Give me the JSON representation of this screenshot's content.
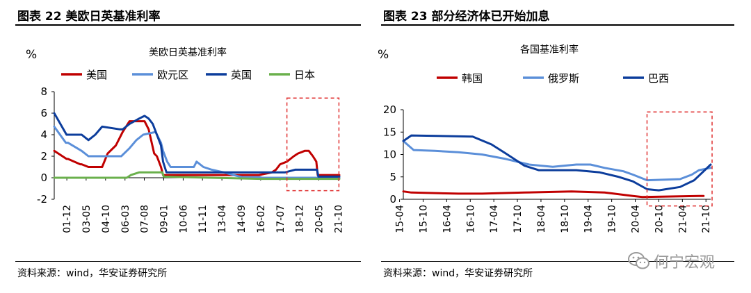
{
  "colors": {
    "red": "#c00000",
    "lightblue": "#5b8fd9",
    "darkblue": "#0c3d9c",
    "green": "#6ab04c",
    "highlight": "#e03030",
    "gray": "#9a9a9a"
  },
  "left_panel": {
    "title": "图表 22  美欧日英基准利率",
    "source": "资料来源：wind，华安证券研究所"
  },
  "right_panel": {
    "title": "图表 23  部分经济体已开始加息",
    "source": "资料来源：wind，华安证券研究所"
  },
  "watermark": {
    "text": "何宁宏观",
    "icon": "wechat-icon"
  },
  "chart_data": [
    {
      "type": "line",
      "title": "美欧日英基准利率",
      "ylabel": "%",
      "ylim": [
        -2,
        8
      ],
      "yticks": [
        -2,
        0,
        2,
        4,
        6,
        8
      ],
      "xlim": [
        2001.0,
        2021.83
      ],
      "xticks": [
        "01-12",
        "03-05",
        "04-10",
        "06-03",
        "07-08",
        "09-01",
        "10-06",
        "11-11",
        "13-04",
        "14-09",
        "16-02",
        "17-07",
        "18-12",
        "20-05",
        "21-10"
      ],
      "xtick_values": [
        2001.92,
        2003.33,
        2004.75,
        2006.17,
        2007.58,
        2009.0,
        2010.42,
        2011.83,
        2013.25,
        2014.67,
        2016.08,
        2017.5,
        2018.92,
        2020.33,
        2021.75
      ],
      "legend_position": "top",
      "highlight_box": {
        "x": [
          2018.0,
          2021.8
        ],
        "y": [
          -1.2,
          7.4
        ]
      },
      "series": [
        {
          "name": "美国",
          "color": "#c00000",
          "x": [
            2001.0,
            2001.9,
            2002.0,
            2002.9,
            2003.0,
            2003.5,
            2004.5,
            2004.9,
            2005.5,
            2006.0,
            2006.5,
            2007.6,
            2007.9,
            2008.3,
            2008.5,
            2008.8,
            2008.95,
            2015.95,
            2016.9,
            2017.2,
            2017.5,
            2018.0,
            2018.5,
            2018.8,
            2019.3,
            2019.6,
            2019.9,
            2020.15,
            2020.25,
            2021.83
          ],
          "y": [
            2.5,
            1.75,
            1.75,
            1.25,
            1.25,
            1.0,
            1.0,
            2.25,
            3.0,
            4.25,
            5.25,
            5.25,
            4.5,
            2.25,
            2.0,
            1.0,
            0.25,
            0.25,
            0.5,
            0.75,
            1.25,
            1.5,
            2.0,
            2.25,
            2.5,
            2.5,
            2.0,
            1.5,
            0.25,
            0.25
          ]
        },
        {
          "name": "欧元区",
          "color": "#5b8fd9",
          "x": [
            2001.0,
            2001.85,
            2002.0,
            2003.0,
            2003.5,
            2005.9,
            2006.5,
            2007.0,
            2007.5,
            2008.4,
            2008.8,
            2008.95,
            2009.25,
            2009.5,
            2011.2,
            2011.4,
            2011.9,
            2012.5,
            2013.4,
            2014.4,
            2014.8,
            2016.0,
            2016.2,
            2021.83
          ],
          "y": [
            4.75,
            3.25,
            3.25,
            2.5,
            2.0,
            2.0,
            2.75,
            3.5,
            4.0,
            4.25,
            3.25,
            2.5,
            1.5,
            1.0,
            1.0,
            1.5,
            1.0,
            0.75,
            0.5,
            0.15,
            0.05,
            0.05,
            0.0,
            0.0
          ]
        },
        {
          "name": "英国",
          "color": "#0c3d9c",
          "x": [
            2001.0,
            2001.9,
            2002.2,
            2003.0,
            2003.5,
            2004.0,
            2004.5,
            2005.8,
            2006.0,
            2006.5,
            2007.2,
            2007.6,
            2007.9,
            2008.2,
            2008.8,
            2008.95,
            2009.2,
            2017.85,
            2018.6,
            2020.2,
            2020.3,
            2021.83
          ],
          "y": [
            6.0,
            4.0,
            4.0,
            4.0,
            3.5,
            4.0,
            4.75,
            4.5,
            4.5,
            5.0,
            5.5,
            5.75,
            5.5,
            5.0,
            3.0,
            1.5,
            0.5,
            0.5,
            0.75,
            0.75,
            0.1,
            0.1
          ]
        },
        {
          "name": "日本",
          "color": "#6ab04c",
          "x": [
            2001.0,
            2006.3,
            2006.6,
            2007.2,
            2008.9,
            2009.0,
            2016.1,
            2021.83
          ],
          "y": [
            0.0,
            0.0,
            0.25,
            0.5,
            0.5,
            0.1,
            -0.1,
            -0.1
          ]
        }
      ]
    },
    {
      "type": "line",
      "title": "各国基准利率",
      "ylabel": "%",
      "ylim": [
        0,
        20
      ],
      "yticks": [
        0,
        5,
        10,
        15,
        20
      ],
      "xlim": [
        2015.33,
        2021.85
      ],
      "xticks": [
        "15-04",
        "15-10",
        "16-04",
        "16-10",
        "17-04",
        "17-10",
        "18-04",
        "18-10",
        "19-04",
        "19-10",
        "20-04",
        "20-10",
        "21-04",
        "21-10"
      ],
      "xtick_values": [
        2015.25,
        2015.75,
        2016.25,
        2016.75,
        2017.25,
        2017.75,
        2018.25,
        2018.75,
        2019.25,
        2019.75,
        2020.25,
        2020.75,
        2021.25,
        2021.75
      ],
      "legend_position": "top",
      "highlight_box": {
        "x": [
          2020.5,
          2021.88
        ],
        "y": [
          -1.5,
          19.5
        ]
      },
      "series": [
        {
          "name": "韩国",
          "color": "#c00000",
          "x": [
            2015.33,
            2015.5,
            2016.5,
            2017.0,
            2017.9,
            2018.9,
            2019.6,
            2019.8,
            2020.2,
            2020.4,
            2021.6,
            2021.7
          ],
          "y": [
            1.75,
            1.5,
            1.25,
            1.25,
            1.5,
            1.75,
            1.5,
            1.25,
            0.75,
            0.5,
            0.75,
            0.75
          ]
        },
        {
          "name": "俄罗斯",
          "color": "#5b8fd9",
          "x": [
            2015.33,
            2015.55,
            2016.0,
            2016.5,
            2017.0,
            2017.5,
            2018.0,
            2018.5,
            2019.0,
            2019.3,
            2019.6,
            2020.0,
            2020.2,
            2020.5,
            2021.2,
            2021.45,
            2021.6,
            2021.85
          ],
          "y": [
            13.0,
            11.0,
            10.8,
            10.5,
            10.0,
            9.0,
            7.75,
            7.25,
            7.75,
            7.75,
            7.0,
            6.25,
            5.5,
            4.25,
            4.5,
            5.5,
            6.5,
            7.0
          ]
        },
        {
          "name": "巴西",
          "color": "#0c3d9c",
          "x": [
            2015.33,
            2015.5,
            2016.8,
            2017.2,
            2017.5,
            2017.9,
            2018.2,
            2019.0,
            2019.5,
            2019.9,
            2020.2,
            2020.5,
            2020.75,
            2021.2,
            2021.5,
            2021.85
          ],
          "y": [
            13.0,
            14.25,
            14.0,
            12.25,
            10.25,
            7.5,
            6.5,
            6.5,
            6.0,
            5.0,
            4.0,
            2.25,
            2.0,
            2.75,
            4.25,
            7.75
          ]
        }
      ]
    }
  ]
}
